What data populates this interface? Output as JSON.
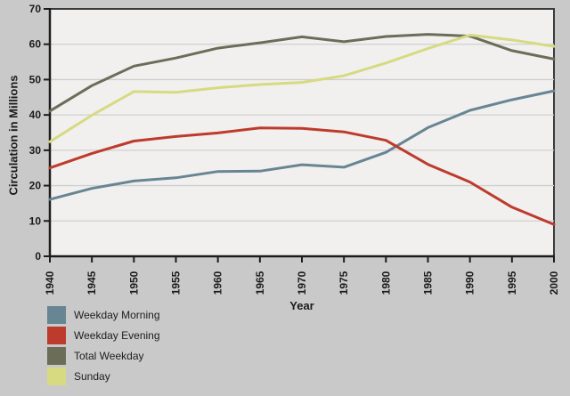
{
  "page": {
    "background": "#c9c9c9"
  },
  "chart_data": {
    "type": "line",
    "title": "",
    "xlabel": "Year",
    "ylabel": "Circulation in Millions",
    "x": [
      1940,
      1945,
      1950,
      1955,
      1960,
      1965,
      1970,
      1975,
      1980,
      1985,
      1990,
      1995,
      2000
    ],
    "series": [
      {
        "name": "Weekday Morning",
        "color": "#688593",
        "values": [
          16.1,
          19.2,
          21.3,
          22.2,
          24.0,
          24.1,
          25.9,
          25.2,
          29.4,
          36.4,
          41.3,
          44.3,
          46.8
        ]
      },
      {
        "name": "Weekday Evening",
        "color": "#bd3b2c",
        "values": [
          25.0,
          29.1,
          32.6,
          33.9,
          34.9,
          36.3,
          36.2,
          35.2,
          32.8,
          26.0,
          21.0,
          13.9,
          9.0
        ]
      },
      {
        "name": "Total Weekday",
        "color": "#6c6d59",
        "values": [
          41.1,
          48.3,
          53.8,
          56.1,
          58.9,
          60.4,
          62.1,
          60.7,
          62.2,
          62.8,
          62.3,
          58.2,
          55.8
        ]
      },
      {
        "name": "Sunday",
        "color": "#d7da81",
        "values": [
          32.4,
          39.9,
          46.6,
          46.4,
          47.7,
          48.6,
          49.2,
          51.1,
          54.7,
          58.8,
          62.6,
          61.2,
          59.4
        ]
      }
    ],
    "ylim": [
      0,
      70
    ],
    "ytick_step": 10,
    "xtick_labels": [
      "1940",
      "1945",
      "1950",
      "1955",
      "1960",
      "1965",
      "1970",
      "1975",
      "1980",
      "1985",
      "1990",
      "1995",
      "2000"
    ],
    "grid": true,
    "legend_position": "bottom-left",
    "line_width": 3,
    "colors": {
      "plot_bg": "#f1f0ee",
      "grid": "#cfcfcf",
      "frame": "#3a3a3a",
      "axis": "#1c1c1c",
      "tick_text": "#1b1b1b"
    }
  }
}
